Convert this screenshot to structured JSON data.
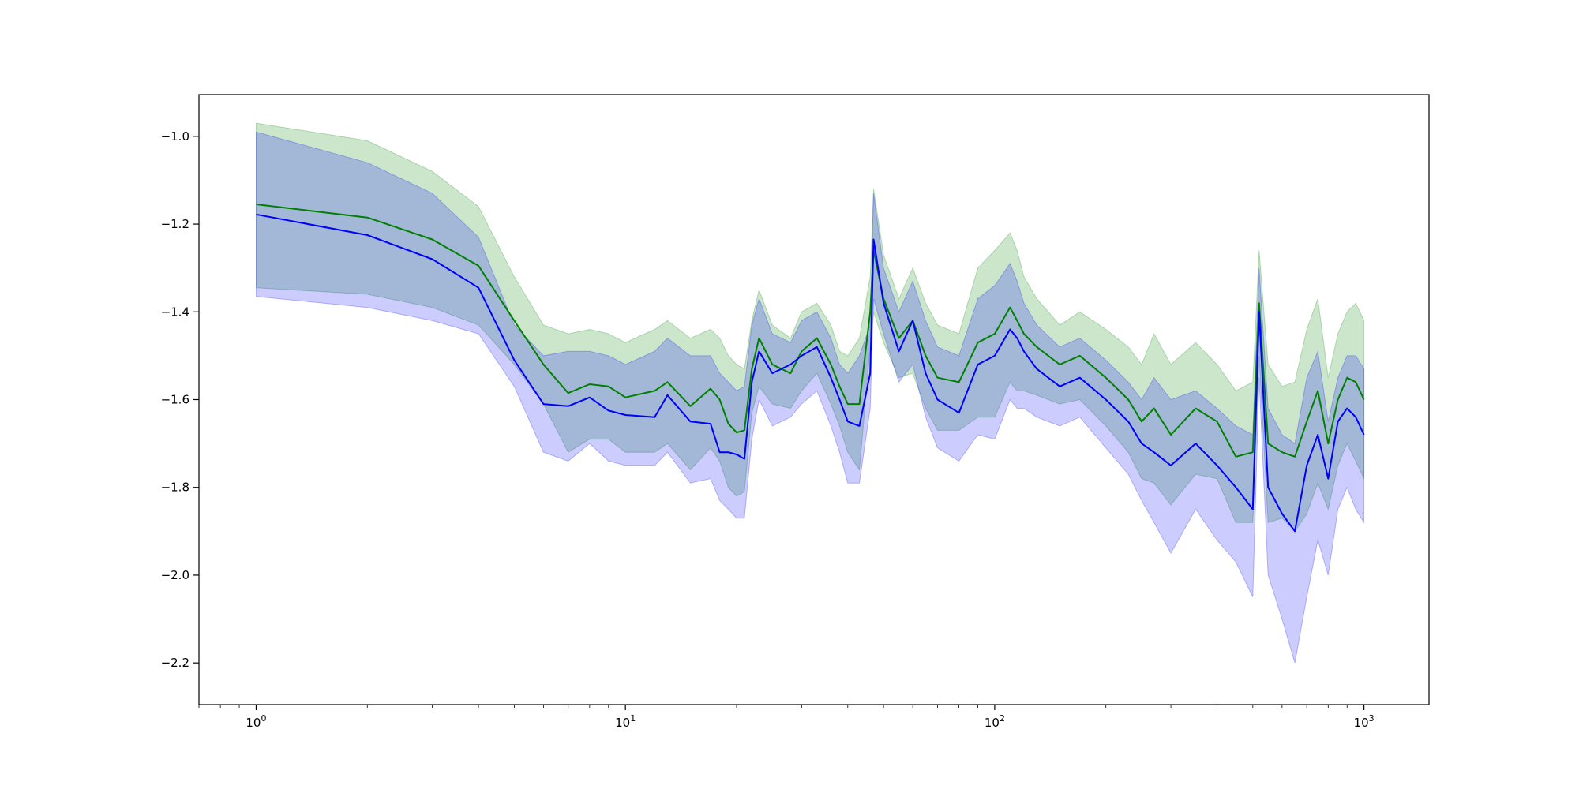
{
  "chart_data": {
    "type": "line",
    "title": "",
    "xlabel": "",
    "ylabel": "",
    "xscale": "log",
    "xlim": [
      0.7,
      1500
    ],
    "ylim": [
      -2.295,
      -0.905
    ],
    "grid": false,
    "legend": "none",
    "x_ticks": [
      {
        "base": "10",
        "exp": "0",
        "value": 1
      },
      {
        "base": "10",
        "exp": "1",
        "value": 10
      },
      {
        "base": "10",
        "exp": "2",
        "value": 100
      },
      {
        "base": "10",
        "exp": "3",
        "value": 1000
      }
    ],
    "y_ticks": [
      {
        "label": "−1.0",
        "value": -1.0
      },
      {
        "label": "−1.2",
        "value": -1.2
      },
      {
        "label": "−1.4",
        "value": -1.4
      },
      {
        "label": "−1.6",
        "value": -1.6
      },
      {
        "label": "−1.8",
        "value": -1.8
      },
      {
        "label": "−2.0",
        "value": -2.0
      },
      {
        "label": "−2.2",
        "value": -2.2
      }
    ],
    "series": [
      {
        "color": "#008000",
        "band_color": "#008000",
        "band_opacity": 0.2,
        "x": [
          1,
          2,
          3,
          4,
          5,
          6,
          7,
          8,
          9,
          10,
          12,
          13,
          15,
          17,
          18,
          19,
          20,
          21,
          22,
          23,
          25,
          28,
          30,
          33,
          36,
          38,
          40,
          43,
          46,
          47,
          50,
          55,
          60,
          65,
          70,
          80,
          90,
          100,
          110,
          115,
          120,
          130,
          150,
          170,
          200,
          230,
          250,
          270,
          300,
          350,
          400,
          450,
          500,
          520,
          550,
          600,
          650,
          700,
          750,
          800,
          850,
          900,
          950,
          1000
        ],
        "y": [
          -1.155,
          -1.185,
          -1.235,
          -1.295,
          -1.42,
          -1.52,
          -1.585,
          -1.565,
          -1.57,
          -1.595,
          -1.58,
          -1.56,
          -1.615,
          -1.575,
          -1.6,
          -1.655,
          -1.675,
          -1.67,
          -1.53,
          -1.46,
          -1.52,
          -1.54,
          -1.49,
          -1.46,
          -1.52,
          -1.57,
          -1.61,
          -1.61,
          -1.4,
          -1.26,
          -1.37,
          -1.46,
          -1.42,
          -1.5,
          -1.55,
          -1.56,
          -1.47,
          -1.45,
          -1.39,
          -1.42,
          -1.45,
          -1.48,
          -1.52,
          -1.5,
          -1.55,
          -1.6,
          -1.65,
          -1.62,
          -1.68,
          -1.62,
          -1.65,
          -1.73,
          -1.72,
          -1.38,
          -1.7,
          -1.72,
          -1.73,
          -1.65,
          -1.58,
          -1.7,
          -1.6,
          -1.55,
          -1.56,
          -1.6
        ],
        "upper": [
          -0.97,
          -1.01,
          -1.08,
          -1.16,
          -1.32,
          -1.43,
          -1.45,
          -1.44,
          -1.45,
          -1.47,
          -1.44,
          -1.42,
          -1.46,
          -1.44,
          -1.46,
          -1.5,
          -1.52,
          -1.53,
          -1.42,
          -1.35,
          -1.43,
          -1.46,
          -1.4,
          -1.38,
          -1.43,
          -1.49,
          -1.5,
          -1.46,
          -1.32,
          -1.12,
          -1.27,
          -1.37,
          -1.3,
          -1.38,
          -1.43,
          -1.45,
          -1.3,
          -1.26,
          -1.22,
          -1.26,
          -1.32,
          -1.37,
          -1.43,
          -1.4,
          -1.44,
          -1.48,
          -1.52,
          -1.45,
          -1.52,
          -1.47,
          -1.52,
          -1.58,
          -1.56,
          -1.26,
          -1.52,
          -1.57,
          -1.56,
          -1.44,
          -1.37,
          -1.55,
          -1.45,
          -1.4,
          -1.38,
          -1.42
        ],
        "lower": [
          -1.345,
          -1.36,
          -1.39,
          -1.43,
          -1.52,
          -1.61,
          -1.72,
          -1.69,
          -1.69,
          -1.72,
          -1.72,
          -1.7,
          -1.76,
          -1.71,
          -1.74,
          -1.8,
          -1.82,
          -1.81,
          -1.63,
          -1.57,
          -1.61,
          -1.62,
          -1.58,
          -1.54,
          -1.61,
          -1.66,
          -1.72,
          -1.76,
          -1.48,
          -1.4,
          -1.47,
          -1.55,
          -1.54,
          -1.62,
          -1.67,
          -1.67,
          -1.64,
          -1.64,
          -1.56,
          -1.58,
          -1.58,
          -1.59,
          -1.61,
          -1.6,
          -1.66,
          -1.72,
          -1.78,
          -1.79,
          -1.84,
          -1.77,
          -1.78,
          -1.88,
          -1.88,
          -1.5,
          -1.88,
          -1.87,
          -1.9,
          -1.86,
          -1.79,
          -1.85,
          -1.75,
          -1.7,
          -1.74,
          -1.78
        ]
      },
      {
        "color": "#0000ff",
        "band_color": "#0000ff",
        "band_opacity": 0.2,
        "x": [
          1,
          2,
          3,
          4,
          5,
          6,
          7,
          8,
          9,
          10,
          12,
          13,
          15,
          17,
          18,
          19,
          20,
          21,
          22,
          23,
          25,
          28,
          30,
          33,
          36,
          38,
          40,
          43,
          46,
          47,
          50,
          55,
          60,
          65,
          70,
          80,
          90,
          100,
          110,
          115,
          120,
          130,
          150,
          170,
          200,
          230,
          250,
          270,
          300,
          350,
          400,
          450,
          500,
          520,
          550,
          600,
          650,
          700,
          750,
          800,
          850,
          900,
          950,
          1000
        ],
        "y": [
          -1.178,
          -1.225,
          -1.28,
          -1.345,
          -1.51,
          -1.61,
          -1.615,
          -1.595,
          -1.625,
          -1.635,
          -1.64,
          -1.59,
          -1.65,
          -1.655,
          -1.72,
          -1.72,
          -1.725,
          -1.735,
          -1.56,
          -1.49,
          -1.54,
          -1.52,
          -1.5,
          -1.48,
          -1.55,
          -1.6,
          -1.65,
          -1.66,
          -1.54,
          -1.235,
          -1.38,
          -1.49,
          -1.42,
          -1.54,
          -1.6,
          -1.63,
          -1.52,
          -1.5,
          -1.44,
          -1.46,
          -1.49,
          -1.53,
          -1.57,
          -1.55,
          -1.6,
          -1.65,
          -1.7,
          -1.72,
          -1.75,
          -1.7,
          -1.75,
          -1.8,
          -1.85,
          -1.4,
          -1.8,
          -1.86,
          -1.9,
          -1.75,
          -1.68,
          -1.78,
          -1.65,
          -1.62,
          -1.64,
          -1.68
        ],
        "upper": [
          -0.99,
          -1.06,
          -1.13,
          -1.23,
          -1.43,
          -1.5,
          -1.49,
          -1.49,
          -1.5,
          -1.52,
          -1.49,
          -1.46,
          -1.5,
          -1.5,
          -1.54,
          -1.56,
          -1.58,
          -1.57,
          -1.43,
          -1.37,
          -1.45,
          -1.47,
          -1.42,
          -1.4,
          -1.46,
          -1.52,
          -1.54,
          -1.5,
          -1.43,
          -1.13,
          -1.3,
          -1.4,
          -1.33,
          -1.42,
          -1.48,
          -1.5,
          -1.37,
          -1.34,
          -1.29,
          -1.33,
          -1.38,
          -1.43,
          -1.48,
          -1.46,
          -1.51,
          -1.56,
          -1.6,
          -1.55,
          -1.6,
          -1.58,
          -1.62,
          -1.66,
          -1.68,
          -1.3,
          -1.62,
          -1.68,
          -1.7,
          -1.55,
          -1.49,
          -1.65,
          -1.55,
          -1.5,
          -1.5,
          -1.53
        ],
        "lower": [
          -1.365,
          -1.39,
          -1.42,
          -1.45,
          -1.57,
          -1.72,
          -1.74,
          -1.7,
          -1.74,
          -1.75,
          -1.75,
          -1.72,
          -1.79,
          -1.78,
          -1.83,
          -1.85,
          -1.87,
          -1.87,
          -1.69,
          -1.6,
          -1.66,
          -1.64,
          -1.61,
          -1.58,
          -1.66,
          -1.72,
          -1.79,
          -1.79,
          -1.62,
          -1.37,
          -1.45,
          -1.56,
          -1.52,
          -1.64,
          -1.71,
          -1.74,
          -1.68,
          -1.69,
          -1.6,
          -1.62,
          -1.62,
          -1.64,
          -1.66,
          -1.64,
          -1.71,
          -1.77,
          -1.83,
          -1.88,
          -1.95,
          -1.85,
          -1.92,
          -1.97,
          -2.05,
          -1.55,
          -2.0,
          -2.1,
          -2.2,
          -2.05,
          -1.92,
          -2.0,
          -1.85,
          -1.8,
          -1.85,
          -1.88
        ]
      }
    ]
  }
}
